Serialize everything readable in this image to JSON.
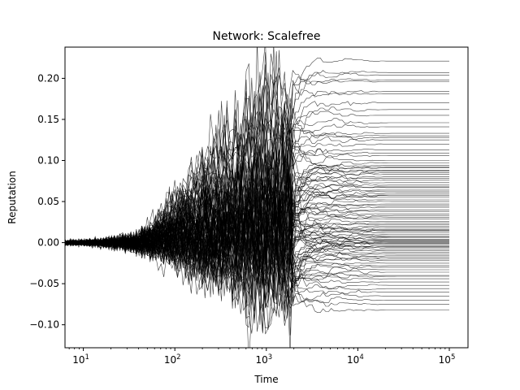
{
  "chart_data": {
    "type": "line",
    "title": "Network: Scalefree",
    "xlabel": "Time",
    "ylabel": "Reputation",
    "x_scale": "log",
    "xlim": [
      6.3,
      160000
    ],
    "ylim": [
      -0.128,
      0.238
    ],
    "grid": false,
    "legend": "none",
    "line_color": "#000000",
    "series_count": 100,
    "x_ticks": [
      {
        "value": 10,
        "base": "10",
        "exp": "1"
      },
      {
        "value": 100,
        "base": "10",
        "exp": "2"
      },
      {
        "value": 1000,
        "base": "10",
        "exp": "3"
      },
      {
        "value": 10000,
        "base": "10",
        "exp": "4"
      },
      {
        "value": 100000,
        "base": "10",
        "exp": "5"
      }
    ],
    "y_ticks": [
      {
        "value": -0.1,
        "label": "−0.10"
      },
      {
        "value": -0.05,
        "label": "−0.05"
      },
      {
        "value": 0.0,
        "label": "0.00"
      },
      {
        "value": 0.05,
        "label": "0.05"
      },
      {
        "value": 0.1,
        "label": "0.10"
      },
      {
        "value": 0.15,
        "label": "0.15"
      },
      {
        "value": 0.2,
        "label": "0.20"
      }
    ],
    "x_series_start": 6.3,
    "x_series_end": 100000,
    "final_values": [
      0.221,
      0.207,
      0.204,
      0.198,
      0.196,
      0.184,
      0.181,
      0.17,
      0.162,
      0.155,
      0.146,
      0.133,
      0.13,
      0.128,
      0.125,
      0.12,
      0.113,
      0.106,
      0.1,
      0.097,
      0.094,
      0.091,
      0.088,
      0.087,
      0.085,
      0.083,
      0.08,
      0.078,
      0.076,
      0.073,
      0.07,
      0.067,
      0.064,
      0.062,
      0.06,
      0.058,
      0.055,
      0.052,
      0.05,
      0.047,
      0.045,
      0.043,
      0.04,
      0.038,
      0.035,
      0.033,
      0.031,
      0.029,
      0.026,
      0.024,
      0.022,
      0.02,
      0.018,
      0.016,
      0.014,
      0.012,
      0.01,
      0.008,
      0.007,
      0.006,
      0.004,
      0.003,
      0.002,
      0.001,
      0.0,
      -0.001,
      -0.002,
      -0.004,
      -0.005,
      -0.006,
      -0.008,
      -0.01,
      -0.012,
      -0.014,
      -0.016,
      -0.018,
      -0.02,
      -0.022,
      -0.025,
      -0.028,
      -0.03,
      -0.033,
      -0.036,
      -0.04,
      -0.044,
      -0.048,
      -0.052,
      -0.056,
      -0.06,
      -0.065,
      -0.07,
      -0.075,
      -0.082,
      0.068,
      0.092,
      0.109,
      0.141,
      0.015,
      -0.041,
      0.057
    ]
  }
}
